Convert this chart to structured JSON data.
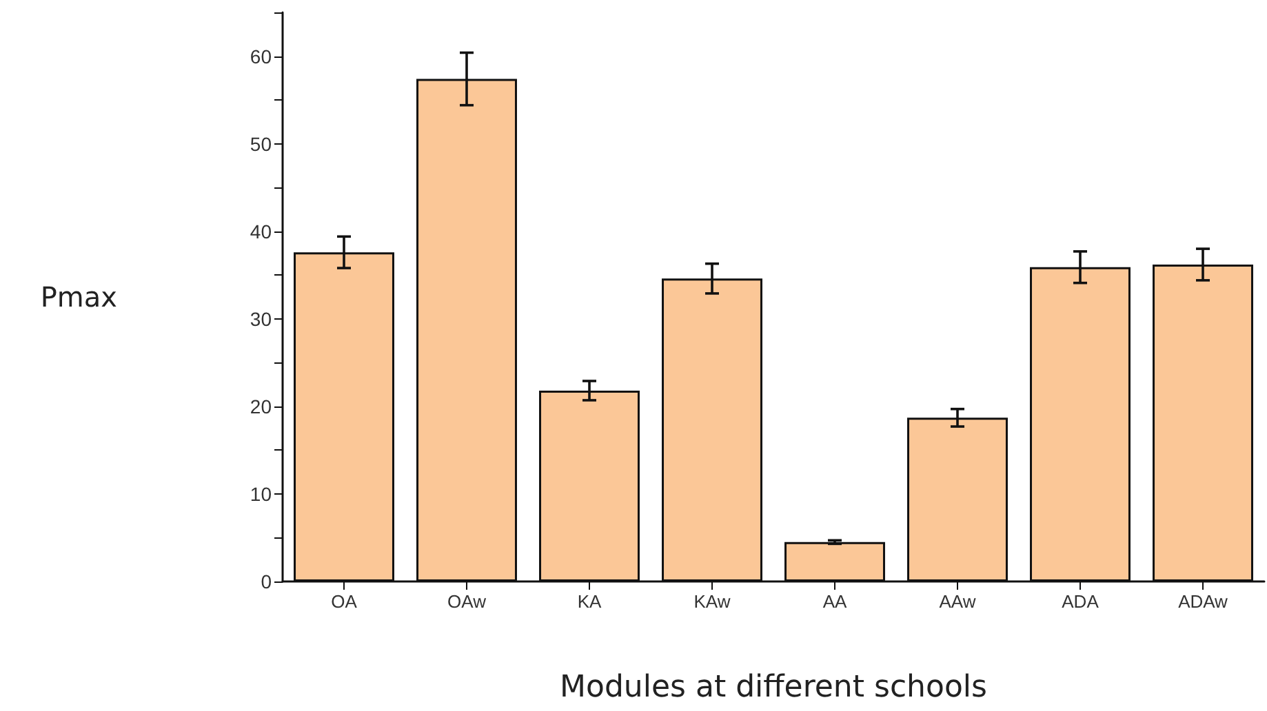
{
  "chart_data": {
    "type": "bar",
    "xlabel": "Modules at different schools",
    "ylabel": "Pmax",
    "categories": [
      "OA",
      "OAw",
      "KA",
      "KAw",
      "AA",
      "AAw",
      "ADA",
      "ADAw"
    ],
    "values": [
      37.6,
      57.4,
      21.8,
      34.6,
      4.5,
      18.7,
      35.9,
      36.2
    ],
    "errors": [
      1.8,
      3.0,
      1.1,
      1.7,
      0.2,
      1.0,
      1.8,
      1.8
    ],
    "color": "#fbc797",
    "ylim": [
      0,
      65
    ],
    "yticks": [
      0,
      {
        "value": 5,
        "label": null
      },
      10,
      {
        "value": 15,
        "label": null
      },
      20,
      {
        "value": 25,
        "label": null
      },
      30,
      {
        "value": 35,
        "label": null
      },
      40,
      {
        "value": 45,
        "label": null
      },
      50,
      {
        "value": 55,
        "label": null
      },
      60,
      {
        "value": 65,
        "label": null
      }
    ],
    "grid": false
  }
}
